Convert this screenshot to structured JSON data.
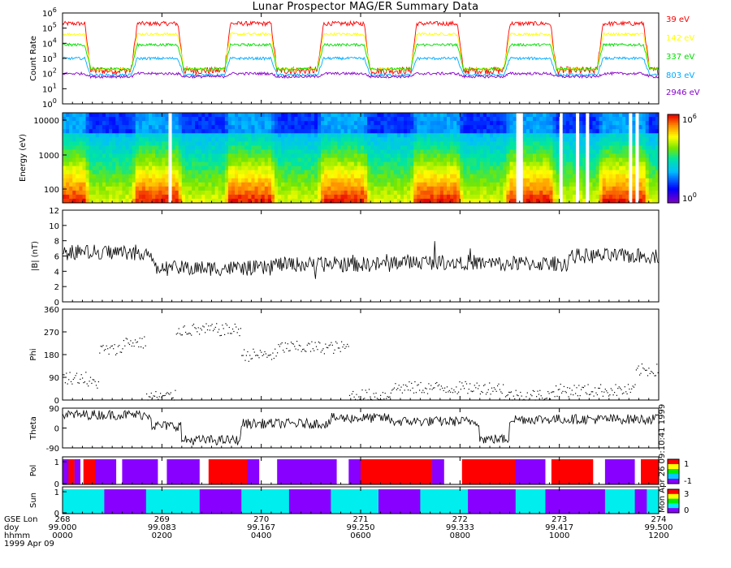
{
  "title": "Lunar Prospector MAG/ER Summary Data",
  "chart_data": [
    {
      "type": "line",
      "panel": "count-rate",
      "ylabel": "Count Rate",
      "yscale": "log",
      "ylim_exponent": [
        0,
        6
      ],
      "ytick_exponents": [
        0,
        1,
        2,
        3,
        4,
        5,
        6
      ],
      "series": [
        {
          "name": "39 eV",
          "color": "#ff0000",
          "high": 5.3,
          "low": 2.2
        },
        {
          "name": "142 eV",
          "color": "#ffff00",
          "high": 4.6,
          "low": 2.3
        },
        {
          "name": "337 eV",
          "color": "#00dd00",
          "high": 3.9,
          "low": 2.3
        },
        {
          "name": "803 eV",
          "color": "#00aaff",
          "high": 3.0,
          "low": 1.9
        },
        {
          "name": "2946 eV",
          "color": "#8800cc",
          "high": 2.0,
          "low": 1.8
        }
      ]
    },
    {
      "type": "heatmap",
      "panel": "energy-spectrogram",
      "ylabel": "Energy (eV)",
      "yscale": "log",
      "ytick_labels": [
        "10000",
        "1000",
        "100"
      ],
      "colorbar": {
        "min_exponent": 0,
        "max_exponent": 6
      }
    },
    {
      "type": "line",
      "panel": "magnitude",
      "ylabel": "|B| (nT)",
      "ylim": [
        0,
        12
      ],
      "yticks": [
        0,
        2,
        4,
        6,
        8,
        10,
        12
      ]
    },
    {
      "type": "scatter",
      "panel": "phi",
      "ylabel": "Phi",
      "ylim": [
        0,
        360
      ],
      "yticks": [
        0,
        90,
        180,
        270,
        360
      ]
    },
    {
      "type": "line",
      "panel": "theta",
      "ylabel": "Theta",
      "ylim": [
        -90,
        90
      ],
      "yticks": [
        -90,
        0,
        90
      ]
    },
    {
      "type": "heatmap",
      "panel": "polarity",
      "ylabel": "Pol",
      "yticks": [
        0,
        1
      ],
      "colorbar": {
        "labels": [
          "1",
          "-1"
        ]
      },
      "segments": [
        [
          0.0,
          0.01,
          "#8800ff"
        ],
        [
          0.01,
          0.02,
          "#ff0000"
        ],
        [
          0.02,
          0.03,
          "#8800ff"
        ],
        [
          0.03,
          0.035,
          "#ffffff"
        ],
        [
          0.035,
          0.055,
          "#ff0000"
        ],
        [
          0.055,
          0.09,
          "#8800ff"
        ],
        [
          0.09,
          0.1,
          "#ffffff"
        ],
        [
          0.1,
          0.16,
          "#8800ff"
        ],
        [
          0.16,
          0.175,
          "#ffffff"
        ],
        [
          0.175,
          0.23,
          "#8800ff"
        ],
        [
          0.23,
          0.245,
          "#ffffff"
        ],
        [
          0.245,
          0.31,
          "#ff0000"
        ],
        [
          0.31,
          0.33,
          "#8800ff"
        ],
        [
          0.33,
          0.36,
          "#ffffff"
        ],
        [
          0.36,
          0.46,
          "#8800ff"
        ],
        [
          0.46,
          0.48,
          "#ffffff"
        ],
        [
          0.48,
          0.5,
          "#8800ff"
        ],
        [
          0.5,
          0.52,
          "#ff0000"
        ],
        [
          0.52,
          0.62,
          "#ff0000"
        ],
        [
          0.62,
          0.64,
          "#8800ff"
        ],
        [
          0.64,
          0.67,
          "#ffffff"
        ],
        [
          0.67,
          0.76,
          "#ff0000"
        ],
        [
          0.76,
          0.81,
          "#8800ff"
        ],
        [
          0.81,
          0.82,
          "#ffffff"
        ],
        [
          0.82,
          0.89,
          "#ff0000"
        ],
        [
          0.89,
          0.91,
          "#ffffff"
        ],
        [
          0.91,
          0.96,
          "#8800ff"
        ],
        [
          0.96,
          0.97,
          "#ffffff"
        ],
        [
          0.97,
          1.0,
          "#ff0000"
        ]
      ]
    },
    {
      "type": "heatmap",
      "panel": "sun",
      "ylabel": "Sun",
      "yticks": [
        0,
        1
      ],
      "colorbar": {
        "labels": [
          "3",
          "0"
        ]
      },
      "segments": [
        [
          0.0,
          0.07,
          "#00eeee"
        ],
        [
          0.07,
          0.14,
          "#8800ff"
        ],
        [
          0.14,
          0.23,
          "#00eeee"
        ],
        [
          0.23,
          0.3,
          "#8800ff"
        ],
        [
          0.3,
          0.38,
          "#00eeee"
        ],
        [
          0.38,
          0.45,
          "#8800ff"
        ],
        [
          0.45,
          0.53,
          "#00eeee"
        ],
        [
          0.53,
          0.6,
          "#8800ff"
        ],
        [
          0.6,
          0.68,
          "#00eeee"
        ],
        [
          0.68,
          0.76,
          "#8800ff"
        ],
        [
          0.76,
          0.81,
          "#00eeee"
        ],
        [
          0.81,
          0.91,
          "#8800ff"
        ],
        [
          0.91,
          0.96,
          "#00eeee"
        ],
        [
          0.96,
          0.98,
          "#8800ff"
        ],
        [
          0.98,
          1.0,
          "#00eeee"
        ]
      ]
    }
  ],
  "xaxis": {
    "row_labels": [
      "GSE Lon",
      "doy",
      "hhmm",
      "1999 Apr 09"
    ],
    "ticks": [
      {
        "lon": "268",
        "doy": "99.000",
        "hhmm": "0000"
      },
      {
        "lon": "269",
        "doy": "99.083",
        "hhmm": "0200"
      },
      {
        "lon": "270",
        "doy": "99.167",
        "hhmm": "0400"
      },
      {
        "lon": "271",
        "doy": "99.250",
        "hhmm": "0600"
      },
      {
        "lon": "272",
        "doy": "99.333",
        "hhmm": "0800"
      },
      {
        "lon": "273",
        "doy": "99.417",
        "hhmm": "1000"
      },
      {
        "lon": "274",
        "doy": "99.500",
        "hhmm": "1200"
      }
    ]
  },
  "side_stamp": "Mon Apr 26 09:10:41 1999"
}
